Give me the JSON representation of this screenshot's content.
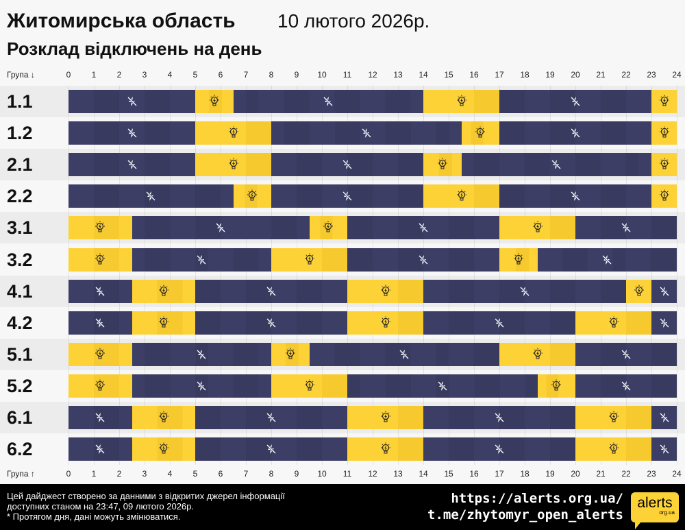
{
  "header": {
    "title": "Житомирська область",
    "date": "10 лютого 2026р.",
    "subtitle": "Розклад відключень на день"
  },
  "axis": {
    "top_label": "Група ↓",
    "bottom_label": "Група ↑",
    "ticks": [
      "0",
      "1",
      "2",
      "3",
      "4",
      "5",
      "6",
      "7",
      "8",
      "9",
      "10",
      "11",
      "12",
      "13",
      "14",
      "15",
      "16",
      "17",
      "18",
      "19",
      "20",
      "21",
      "22",
      "23",
      "24"
    ]
  },
  "colors": {
    "off": "#3c3e66",
    "on": "#fdd236"
  },
  "icons": {
    "off": "power-off-icon",
    "on": "light-bulb-icon"
  },
  "groups": [
    {
      "name": "1.1",
      "segments": [
        [
          "off",
          0,
          5
        ],
        [
          "on",
          5,
          6.5
        ],
        [
          "off",
          6.5,
          14
        ],
        [
          "on",
          14,
          17
        ],
        [
          "off",
          17,
          23
        ],
        [
          "on",
          23,
          24
        ]
      ]
    },
    {
      "name": "1.2",
      "segments": [
        [
          "off",
          0,
          5
        ],
        [
          "on",
          5,
          8
        ],
        [
          "off",
          8,
          15.5
        ],
        [
          "on",
          15.5,
          17
        ],
        [
          "off",
          17,
          23
        ],
        [
          "on",
          23,
          24
        ]
      ]
    },
    {
      "name": "2.1",
      "segments": [
        [
          "off",
          0,
          5
        ],
        [
          "on",
          5,
          8
        ],
        [
          "off",
          8,
          14
        ],
        [
          "on",
          14,
          15.5
        ],
        [
          "off",
          15.5,
          23
        ],
        [
          "on",
          23,
          24
        ]
      ]
    },
    {
      "name": "2.2",
      "segments": [
        [
          "off",
          0,
          6.5
        ],
        [
          "on",
          6.5,
          8
        ],
        [
          "off",
          8,
          14
        ],
        [
          "on",
          14,
          17
        ],
        [
          "off",
          17,
          23
        ],
        [
          "on",
          23,
          24
        ]
      ]
    },
    {
      "name": "3.1",
      "segments": [
        [
          "on",
          0,
          2.5
        ],
        [
          "off",
          2.5,
          9.5
        ],
        [
          "on",
          9.5,
          11
        ],
        [
          "off",
          11,
          17
        ],
        [
          "on",
          17,
          20
        ],
        [
          "off",
          20,
          24
        ]
      ]
    },
    {
      "name": "3.2",
      "segments": [
        [
          "on",
          0,
          2.5
        ],
        [
          "off",
          2.5,
          8
        ],
        [
          "on",
          8,
          11
        ],
        [
          "off",
          11,
          17
        ],
        [
          "on",
          17,
          18.5
        ],
        [
          "off",
          18.5,
          24
        ]
      ]
    },
    {
      "name": "4.1",
      "segments": [
        [
          "off",
          0,
          2.5
        ],
        [
          "on",
          2.5,
          5
        ],
        [
          "off",
          5,
          11
        ],
        [
          "on",
          11,
          14
        ],
        [
          "off",
          14,
          22
        ],
        [
          "on",
          22,
          23
        ],
        [
          "off",
          23,
          24
        ]
      ]
    },
    {
      "name": "4.2",
      "segments": [
        [
          "off",
          0,
          2.5
        ],
        [
          "on",
          2.5,
          5
        ],
        [
          "off",
          5,
          11
        ],
        [
          "on",
          11,
          14
        ],
        [
          "off",
          14,
          20
        ],
        [
          "on",
          20,
          23
        ],
        [
          "off",
          23,
          24
        ]
      ]
    },
    {
      "name": "5.1",
      "segments": [
        [
          "on",
          0,
          2.5
        ],
        [
          "off",
          2.5,
          8
        ],
        [
          "on",
          8,
          9.5
        ],
        [
          "off",
          9.5,
          17
        ],
        [
          "on",
          17,
          20
        ],
        [
          "off",
          20,
          24
        ]
      ]
    },
    {
      "name": "5.2",
      "segments": [
        [
          "on",
          0,
          2.5
        ],
        [
          "off",
          2.5,
          8
        ],
        [
          "on",
          8,
          11
        ],
        [
          "off",
          11,
          18.5
        ],
        [
          "on",
          18.5,
          20
        ],
        [
          "off",
          20,
          24
        ]
      ]
    },
    {
      "name": "6.1",
      "segments": [
        [
          "off",
          0,
          2.5
        ],
        [
          "on",
          2.5,
          5
        ],
        [
          "off",
          5,
          11
        ],
        [
          "on",
          11,
          14
        ],
        [
          "off",
          14,
          20
        ],
        [
          "on",
          20,
          23
        ],
        [
          "off",
          23,
          24
        ]
      ]
    },
    {
      "name": "6.2",
      "segments": [
        [
          "off",
          0,
          2.5
        ],
        [
          "on",
          2.5,
          5
        ],
        [
          "off",
          5,
          11
        ],
        [
          "on",
          11,
          14
        ],
        [
          "off",
          14,
          20
        ],
        [
          "on",
          20,
          23
        ],
        [
          "off",
          23,
          24
        ]
      ]
    }
  ],
  "footer": {
    "note1": "Цей дайджест створено за данними з відкритих джерел інформації",
    "note2": "доступних станом на 23:47, 09 лютого 2026р.",
    "note3": "* Протягом дня, дані можуть змінюватися.",
    "link1": "https://alerts.org.ua/",
    "link2": "t.me/zhytomyr_open_alerts",
    "logo_main": "alerts",
    "logo_sub": "org.ua"
  }
}
